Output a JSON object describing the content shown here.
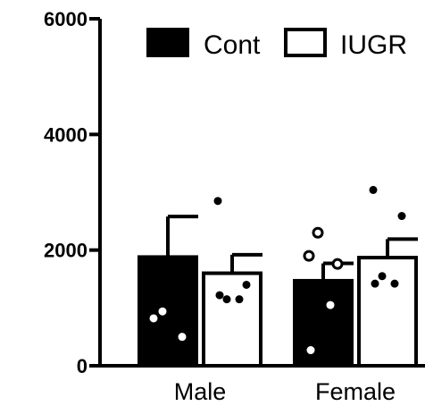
{
  "chart_data": {
    "type": "bar",
    "title": "",
    "xlabel": "",
    "ylabel": "",
    "ylim": [
      0,
      6000
    ],
    "yticks": [
      "0",
      "2000",
      "4000",
      "6000"
    ],
    "ytick_values": [
      0,
      2000,
      4000,
      6000
    ],
    "categories": [
      "Male",
      "Female"
    ],
    "series": [
      {
        "name": "Cont",
        "fill": "#000000",
        "values": [
          1880,
          1470
        ],
        "error": [
          700,
          300
        ],
        "points": [
          [
            820,
            500,
            940
          ],
          [
            1900,
            1760,
            2300,
            1050,
            270
          ]
        ]
      },
      {
        "name": "IUGR",
        "fill": "#ffffff",
        "values": [
          1600,
          1870
        ],
        "error": [
          320,
          320
        ],
        "points": [
          [
            2850,
            1400,
            1150,
            1150,
            1220
          ],
          [
            3040,
            2590,
            1550,
            1420,
            1420
          ]
        ]
      }
    ],
    "legend_position": "top-right",
    "grid": false,
    "colors": {
      "bar_stroke": "#000000",
      "axis": "#000000"
    }
  }
}
